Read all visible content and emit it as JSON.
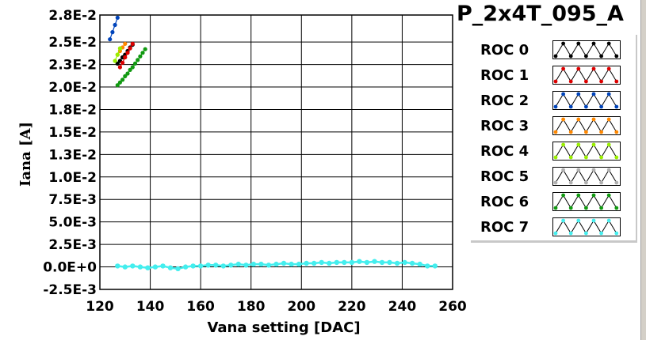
{
  "title": "P_2x4T_095_A",
  "chart_data": {
    "type": "scatter",
    "xlabel": "Vana setting [DAC]",
    "ylabel": "Iana [A]",
    "xlim": [
      120,
      260
    ],
    "ylim": [
      -0.0025,
      0.028
    ],
    "x_ticks": [
      120,
      140,
      160,
      180,
      200,
      220,
      240,
      260
    ],
    "x_tick_labels": [
      "120",
      "140",
      "160",
      "180",
      "200",
      "220",
      "240",
      "260"
    ],
    "y_ticks": [
      0.028,
      0.025,
      0.0225,
      0.02,
      0.0175,
      0.015,
      0.0125,
      0.01,
      0.0075,
      0.005,
      0.0025,
      0.0,
      -0.0025
    ],
    "y_tick_labels": [
      "2.8E-2",
      "2.5E-2",
      "2.3E-2",
      "2.0E-2",
      "1.8E-2",
      "1.5E-2",
      "1.3E-2",
      "1.0E-2",
      "7.5E-3",
      "5.0E-3",
      "2.5E-3",
      "0.0E+0",
      "-2.5E-3"
    ],
    "grid": true,
    "legend_position": "right",
    "series": [
      {
        "name": "ROC 0",
        "color": "#000000",
        "x": [
          127,
          128,
          129,
          130,
          131,
          132,
          133
        ],
        "y": [
          0.0226,
          0.0229,
          0.0233,
          0.0236,
          0.024,
          0.0244,
          0.0247
        ]
      },
      {
        "name": "ROC 1",
        "color": "#dd0000",
        "x": [
          128,
          129,
          130,
          131,
          132,
          133
        ],
        "y": [
          0.0222,
          0.0227,
          0.0233,
          0.0238,
          0.0243,
          0.0248
        ]
      },
      {
        "name": "ROC 2",
        "color": "#0044bb",
        "x": [
          124,
          125,
          126,
          127
        ],
        "y": [
          0.0253,
          0.0261,
          0.0269,
          0.0277
        ]
      },
      {
        "name": "ROC 3",
        "color": "#ff8800",
        "x": [
          127,
          128,
          129,
          130
        ],
        "y": [
          0.0236,
          0.024,
          0.0244,
          0.0248
        ]
      },
      {
        "name": "ROC 4",
        "color": "#99ee00",
        "x": [
          126,
          127,
          128
        ],
        "y": [
          0.0229,
          0.0236,
          0.0243
        ]
      },
      {
        "name": "ROC 5",
        "color": "#b0b0b0",
        "x": [],
        "y": []
      },
      {
        "name": "ROC 6",
        "color": "#119911",
        "x": [
          127,
          128,
          129,
          130,
          131,
          132,
          133,
          134,
          135,
          136,
          137,
          138
        ],
        "y": [
          0.0202,
          0.0205,
          0.0208,
          0.0212,
          0.0215,
          0.0219,
          0.0222,
          0.0226,
          0.023,
          0.0234,
          0.0238,
          0.0242
        ]
      },
      {
        "name": "ROC 7",
        "color": "#44eeee",
        "x": [
          127,
          130,
          133,
          136,
          139,
          142,
          145,
          148,
          151,
          154,
          157,
          160,
          163,
          166,
          169,
          172,
          175,
          178,
          181,
          184,
          187,
          190,
          193,
          196,
          199,
          202,
          205,
          208,
          211,
          214,
          217,
          220,
          223,
          226,
          229,
          232,
          235,
          238,
          241,
          244,
          247,
          250,
          253
        ],
        "y": [
          0.0001,
          0.0,
          0.0001,
          0.0,
          -0.0001,
          0.0,
          0.0001,
          -0.0001,
          -0.0002,
          0.0,
          0.0001,
          0.0001,
          0.0002,
          0.0002,
          0.0001,
          0.0002,
          0.0003,
          0.0002,
          0.0003,
          0.0003,
          0.0002,
          0.0003,
          0.0004,
          0.0003,
          0.0003,
          0.0004,
          0.0004,
          0.0005,
          0.0004,
          0.0005,
          0.0005,
          0.0005,
          0.0006,
          0.0005,
          0.0006,
          0.0005,
          0.0005,
          0.0004,
          0.0005,
          0.0004,
          0.0003,
          0.0001,
          0.0001
        ]
      }
    ]
  }
}
